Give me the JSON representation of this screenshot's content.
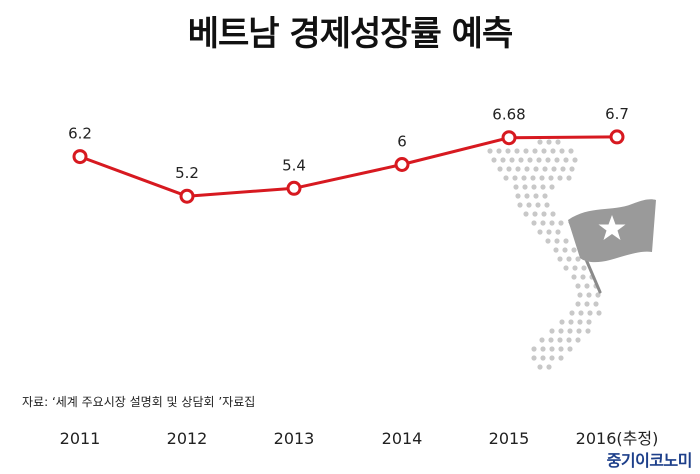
{
  "title": "베트남 경제성장률 예측",
  "source": "자료: ‘세계 주요시장 설명회 및 상담회 ’자료집",
  "credit": "중기이코노미",
  "colors": {
    "line": "#d71920",
    "marker_fill": "#ffffff",
    "map_dots": "#c8c8c8",
    "flag": "#9a9a9a"
  },
  "illustration": {
    "map": "vietnam-dot-map",
    "flag": "star-flag"
  },
  "chart_data": {
    "type": "line",
    "title": "베트남 경제성장률 예측",
    "categories": [
      "2011",
      "2012",
      "2013",
      "2014",
      "2015",
      "2016(추정)"
    ],
    "values": [
      6.2,
      5.2,
      5.4,
      6,
      6.68,
      6.7
    ],
    "data_labels": [
      "6.2",
      "5.2",
      "5.4",
      "6",
      "6.68",
      "6.7"
    ],
    "xlabel": "",
    "ylabel": "",
    "ylim": [
      4.8,
      7.0
    ],
    "grid": false,
    "legend": "none"
  }
}
